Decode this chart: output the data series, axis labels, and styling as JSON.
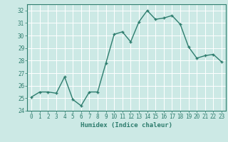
{
  "x": [
    0,
    1,
    2,
    3,
    4,
    5,
    6,
    7,
    8,
    9,
    10,
    11,
    12,
    13,
    14,
    15,
    16,
    17,
    18,
    19,
    20,
    21,
    22,
    23
  ],
  "y": [
    25.1,
    25.5,
    25.5,
    25.4,
    26.7,
    24.9,
    24.4,
    25.5,
    25.5,
    27.8,
    30.1,
    30.3,
    29.5,
    31.1,
    32.0,
    31.3,
    31.4,
    31.6,
    30.9,
    29.1,
    28.2,
    28.4,
    28.5,
    27.9
  ],
  "line_color": "#2e7d6e",
  "marker": "+",
  "marker_size": 3,
  "linewidth": 1.0,
  "bg_color": "#cce9e5",
  "grid_color": "#ffffff",
  "tick_color": "#2e7d6e",
  "label_color": "#2e7d6e",
  "xlabel": "Humidex (Indice chaleur)",
  "ylim": [
    24,
    32.5
  ],
  "yticks": [
    24,
    25,
    26,
    27,
    28,
    29,
    30,
    31,
    32
  ],
  "xticks": [
    0,
    1,
    2,
    3,
    4,
    5,
    6,
    7,
    8,
    9,
    10,
    11,
    12,
    13,
    14,
    15,
    16,
    17,
    18,
    19,
    20,
    21,
    22,
    23
  ],
  "xlabel_fontsize": 6.5,
  "tick_fontsize": 5.5
}
